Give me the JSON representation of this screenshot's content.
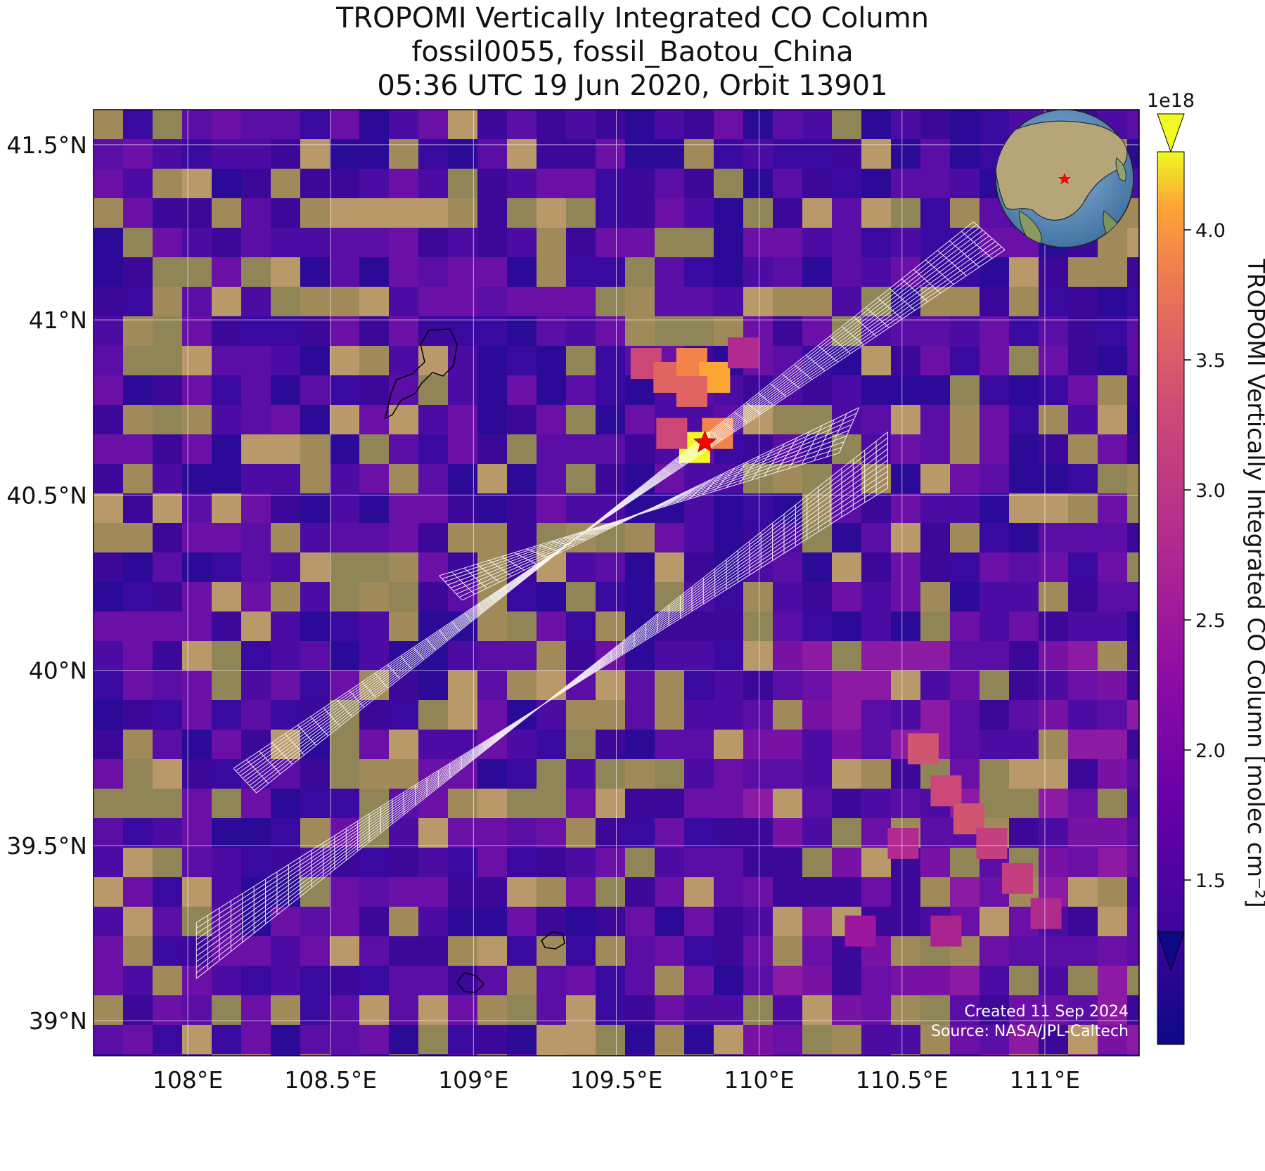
{
  "title": {
    "line1": "TROPOMI Vertically Integrated CO Column",
    "line2": "fossil0055, fossil_Baotou_China",
    "line3": "05:36 UTC 19 Jun 2020, Orbit 13901"
  },
  "map": {
    "extent": {
      "lon_min": 107.67,
      "lon_max": 111.33,
      "lat_min": 38.9,
      "lat_max": 41.6
    },
    "lon_ticks": [
      {
        "value": 108.0,
        "label": "108°E"
      },
      {
        "value": 108.5,
        "label": "108.5°E"
      },
      {
        "value": 109.0,
        "label": "109°E"
      },
      {
        "value": 109.5,
        "label": "109.5°E"
      },
      {
        "value": 110.0,
        "label": "110°E"
      },
      {
        "value": 110.5,
        "label": "110.5°E"
      },
      {
        "value": 111.0,
        "label": "111°E"
      }
    ],
    "lat_ticks": [
      {
        "value": 41.5,
        "label": "41.5°N"
      },
      {
        "value": 41.0,
        "label": "41°N"
      },
      {
        "value": 40.5,
        "label": "40.5°N"
      },
      {
        "value": 40.0,
        "label": "40°N"
      },
      {
        "value": 39.5,
        "label": "39.5°N"
      },
      {
        "value": 39.0,
        "label": "39°N"
      }
    ],
    "target": {
      "name": "fossil_Baotou_China",
      "lon": 109.81,
      "lat": 40.65,
      "marker": "red-star"
    },
    "gridlines": true,
    "credit": {
      "line1": "Created 11 Sep 2024",
      "line2": "Source: NASA/JPL-Caltech"
    },
    "inset_globe": {
      "center": "East Asia",
      "marker": "red-star"
    }
  },
  "colorbar": {
    "label": "TROPOMI Vertically Integrated CO Column [molec cm⁻²]",
    "multiplier": "1e18",
    "range": [
      1.3,
      4.3
    ],
    "extend": "both",
    "colormap": "plasma",
    "ticks": [
      {
        "value": 1.5,
        "label": "1.5"
      },
      {
        "value": 2.0,
        "label": "2.0"
      },
      {
        "value": 2.5,
        "label": "2.5"
      },
      {
        "value": 3.0,
        "label": "3.0"
      },
      {
        "value": 3.5,
        "label": "3.5"
      },
      {
        "value": 4.0,
        "label": "4.0"
      }
    ]
  },
  "colors": {
    "low": "#0d0887",
    "mid": "#9c179e",
    "high": "#ed7953",
    "max": "#f0f921",
    "land": "#b0945e",
    "star": "#ff0000",
    "target_grid": "#ffffff"
  }
}
